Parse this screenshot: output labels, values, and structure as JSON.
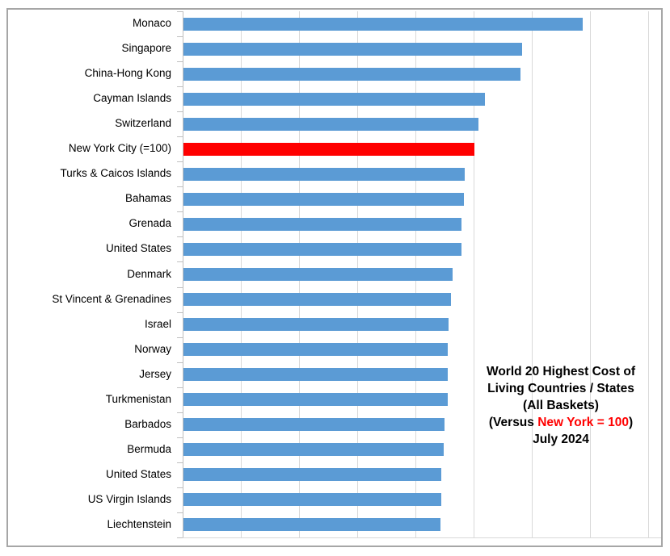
{
  "window": {
    "background": "#FFFFFF",
    "frame_border_color": "#A6A6A6"
  },
  "chart_data": {
    "type": "bar",
    "orientation": "horizontal",
    "title": "World 20 Highest Cost of Living Countries / States (All Baskets) (Versus New York = 100) July 2024",
    "title_lines": [
      {
        "text": "World 20 Highest Cost of"
      },
      {
        "text": "Living Countries / States"
      },
      {
        "text": "(All Baskets)"
      },
      {
        "prefix": "(Versus ",
        "highlight": "New York = 100",
        "suffix": ")"
      },
      {
        "text": "July 2024"
      }
    ],
    "categories": [
      "Monaco",
      "Singapore",
      "China-Hong Kong",
      "Cayman Islands",
      "Switzerland",
      "New York City (=100)",
      "Turks & Caicos Islands",
      "Bahamas",
      "Grenada",
      "United States",
      "Denmark",
      "St Vincent & Grenadines",
      "Israel",
      "Norway",
      "Jersey",
      "Turkmenistan",
      "Barbados",
      "Bermuda",
      "United States",
      "US Virgin Islands",
      "Liechtenstein"
    ],
    "values": [
      137.2,
      116.2,
      115.8,
      103.6,
      101.4,
      100.0,
      96.6,
      96.3,
      95.5,
      95.4,
      92.4,
      91.8,
      91.2,
      90.9,
      90.8,
      90.7,
      89.6,
      89.5,
      88.6,
      88.5,
      88.2
    ],
    "highlight_index": 5,
    "highlight_category": "New York City (=100)",
    "reference_value": 100,
    "colors": {
      "bar": "#5B9BD5",
      "highlight_bar": "#FF0000",
      "gridline": "#D9D9D9",
      "axis": "#BFBFBF",
      "label": "#000000",
      "title": "#000000",
      "title_highlight": "#FF0000"
    },
    "x_axis": {
      "min": 0,
      "max": 164.3,
      "gridline_step": 20,
      "tick_labels_visible": false
    },
    "grid": "vertical-only",
    "legend": "none",
    "data_labels": "none"
  }
}
